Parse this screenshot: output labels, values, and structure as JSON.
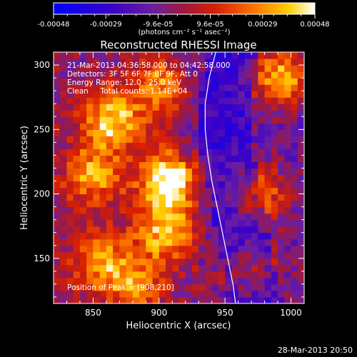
{
  "colorbar": {
    "tick_labels": [
      "-0.00048",
      "-0.00029",
      "-9.6e-05",
      "9.6e-05",
      "0.00029",
      "0.00048"
    ],
    "units_label": "(photons cm⁻² s⁻¹ asec⁻²)"
  },
  "title": "Reconstructed RHESSI Image",
  "annotations": {
    "line1": "21-Mar-2013 04:36:58.000 to 04:42:58.000",
    "line2": "Detectors: 3F 5F 6F 7F 8F 9F, Att 0",
    "line3": "Energy Range: 12.0 - 25.0 keV",
    "line4": "Clean     Total counts: 1.14E+04",
    "peak": "Position of Peak = [908,210]"
  },
  "footer": {
    "timestamp": "28-Mar-2013 20:50"
  },
  "chart_data": {
    "type": "heatmap",
    "title": "Reconstructed RHESSI Image",
    "xlabel": "Heliocentric X (arcsec)",
    "ylabel": "Heliocentric Y (arcsec)",
    "xlim": [
      820,
      1010
    ],
    "ylim": [
      115,
      310
    ],
    "xticks": [
      850,
      900,
      950,
      1000
    ],
    "yticks": [
      150,
      200,
      250,
      300
    ],
    "colorbar_range": [
      -0.00048,
      0.00048
    ],
    "colormap": "blue-purple-red-yellow-white",
    "peak_position": [
      908,
      210
    ],
    "hotspots": [
      {
        "x": 908,
        "y": 210,
        "value": 0.00048
      },
      {
        "x": 865,
        "y": 257,
        "value": 0.00035
      },
      {
        "x": 905,
        "y": 170,
        "value": 0.0003
      },
      {
        "x": 992,
        "y": 290,
        "value": 0.00036
      },
      {
        "x": 850,
        "y": 215,
        "value": 0.00026
      },
      {
        "x": 975,
        "y": 200,
        "value": 0.00024
      },
      {
        "x": 855,
        "y": 148,
        "value": 0.00022
      },
      {
        "x": 900,
        "y": 285,
        "value": 0.0002
      },
      {
        "x": 880,
        "y": 130,
        "value": 0.0002
      },
      {
        "x": 970,
        "y": 140,
        "value": 0.00018
      }
    ],
    "limb_curve": [
      [
        943,
        310
      ],
      [
        938,
        290
      ],
      [
        935,
        270
      ],
      [
        935,
        250
      ],
      [
        937,
        230
      ],
      [
        940,
        210
      ],
      [
        944,
        190
      ],
      [
        948,
        170
      ],
      [
        952,
        150
      ],
      [
        956,
        130
      ],
      [
        958,
        115
      ]
    ],
    "colors": {
      "background": "#000000",
      "axes": "#ffffff",
      "limb": "#ffffff"
    }
  }
}
